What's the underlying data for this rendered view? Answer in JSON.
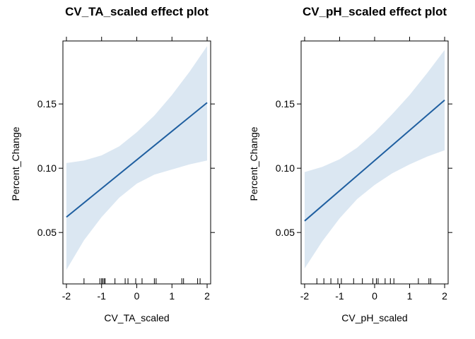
{
  "chart_data": [
    {
      "type": "line",
      "title": "CV_TA_scaled effect plot",
      "xlabel": "CV_TA_scaled",
      "ylabel": "Percent_Change",
      "xlim": [
        -2.1,
        2.1
      ],
      "ylim": [
        0.01,
        0.199
      ],
      "x_ticks": [
        "-2",
        "-1",
        "0",
        "1",
        "2"
      ],
      "y_ticks": [
        "0.05",
        "0.10",
        "0.15"
      ],
      "x_tick_values": [
        -2,
        -1,
        0,
        1,
        2
      ],
      "y_tick_values": [
        0.05,
        0.1,
        0.15
      ],
      "grid": false,
      "colors": {
        "line": "#1f5fa0",
        "band": "#dbe7f2"
      },
      "fit": {
        "x": [
          -2,
          2
        ],
        "y": [
          0.062,
          0.151
        ]
      },
      "confidence_band": {
        "x": [
          -2,
          -1.5,
          -1,
          -0.5,
          0,
          0.5,
          1,
          1.5,
          2
        ],
        "lower": [
          0.021,
          0.044,
          0.062,
          0.077,
          0.088,
          0.095,
          0.099,
          0.103,
          0.106
        ],
        "upper": [
          0.104,
          0.106,
          0.11,
          0.117,
          0.128,
          0.141,
          0.157,
          0.175,
          0.195
        ]
      },
      "rug_x": [
        -1.5,
        -1.05,
        -1.0,
        -0.97,
        -0.93,
        -0.9,
        -0.62,
        -0.33,
        -0.25,
        -0.03,
        0.15,
        0.5,
        0.55,
        1.28,
        1.33,
        1.73,
        1.8
      ]
    },
    {
      "type": "line",
      "title": "CV_pH_scaled effect plot",
      "xlabel": "CV_pH_scaled",
      "ylabel": "Percent_Change",
      "xlim": [
        -2.1,
        2.1
      ],
      "ylim": [
        0.01,
        0.199
      ],
      "x_ticks": [
        "-2",
        "-1",
        "0",
        "1",
        "2"
      ],
      "y_ticks": [
        "0.05",
        "0.10",
        "0.15"
      ],
      "x_tick_values": [
        -2,
        -1,
        0,
        1,
        2
      ],
      "y_tick_values": [
        0.05,
        0.1,
        0.15
      ],
      "grid": false,
      "colors": {
        "line": "#1f5fa0",
        "band": "#dbe7f2"
      },
      "fit": {
        "x": [
          -2,
          2
        ],
        "y": [
          0.059,
          0.153
        ]
      },
      "confidence_band": {
        "x": [
          -2,
          -1.5,
          -1,
          -0.5,
          0,
          0.5,
          1,
          1.5,
          2
        ],
        "lower": [
          0.022,
          0.043,
          0.061,
          0.076,
          0.087,
          0.096,
          0.103,
          0.109,
          0.114
        ],
        "upper": [
          0.097,
          0.101,
          0.107,
          0.116,
          0.128,
          0.142,
          0.157,
          0.174,
          0.192
        ]
      },
      "rug_x": [
        -1.65,
        -1.45,
        -1.25,
        -1.05,
        -0.95,
        -0.6,
        -0.35,
        -0.05,
        0.05,
        0.1,
        0.3,
        0.45,
        0.55,
        1.25,
        1.55,
        1.6
      ]
    }
  ]
}
